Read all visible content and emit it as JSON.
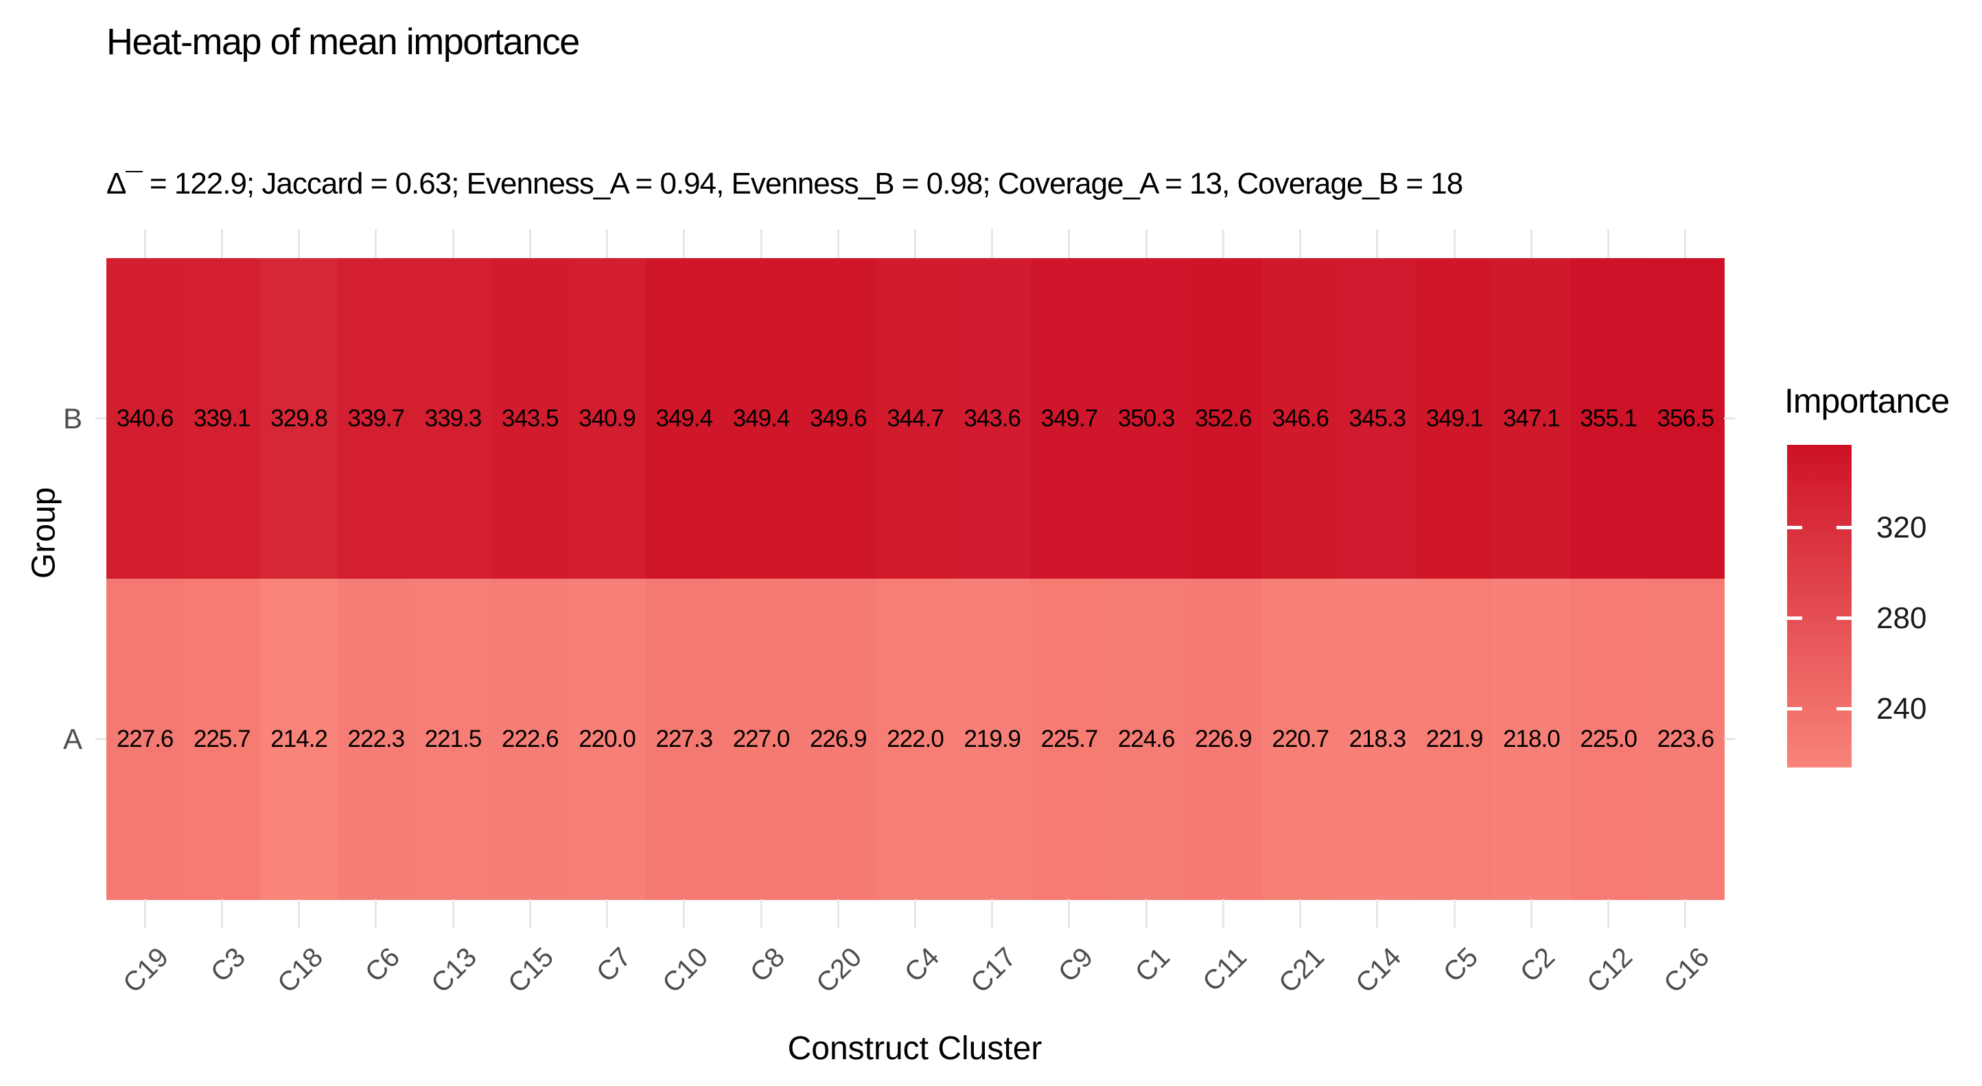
{
  "chart_data": {
    "type": "heatmap",
    "title": "Heat-map of mean importance",
    "subtitle": "Δ¯ = 122.9; Jaccard = 0.63; Evenness_A = 0.94, Evenness_B = 0.98; Coverage_A = 13, Coverage_B = 18",
    "xlabel": "Construct Cluster",
    "ylabel": "Group",
    "categories": [
      "C19",
      "C3",
      "C18",
      "C6",
      "C13",
      "C15",
      "C7",
      "C10",
      "C8",
      "C20",
      "C4",
      "C17",
      "C9",
      "C1",
      "C11",
      "C21",
      "C14",
      "C5",
      "C2",
      "C12",
      "C16"
    ],
    "series": [
      {
        "name": "B",
        "values": [
          340.6,
          339.1,
          329.8,
          339.7,
          339.3,
          343.5,
          340.9,
          349.4,
          349.4,
          349.6,
          344.7,
          343.6,
          349.7,
          350.3,
          352.6,
          346.6,
          345.3,
          349.1,
          347.1,
          355.1,
          356.5
        ]
      },
      {
        "name": "A",
        "values": [
          227.6,
          225.7,
          214.2,
          222.3,
          221.5,
          222.6,
          220.0,
          227.3,
          227.0,
          226.9,
          222.0,
          219.9,
          225.7,
          224.6,
          226.9,
          220.7,
          218.3,
          221.9,
          218.0,
          225.0,
          223.6
        ]
      }
    ],
    "legend": {
      "title": "Importance",
      "ticks": [
        320,
        280,
        240
      ],
      "position": "right"
    },
    "color_scale": {
      "low": "#F8847A",
      "high": "#CE1126",
      "domain": [
        214.2,
        356.5
      ]
    },
    "grid": true,
    "value_format": "one-decimal"
  }
}
